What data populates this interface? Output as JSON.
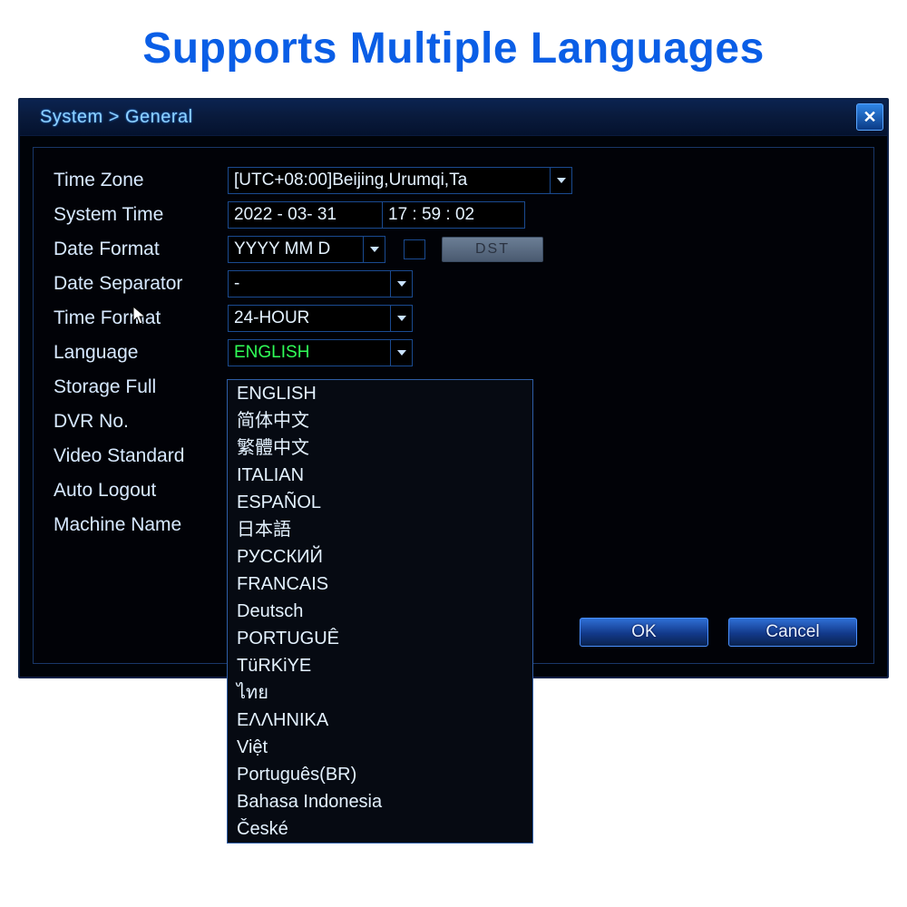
{
  "headline": "Supports Multiple Languages",
  "window": {
    "title": "System > General",
    "fields": {
      "time_zone": {
        "label": "Time Zone",
        "value": "[UTC+08:00]Beijing,Urumqi,Ta"
      },
      "system_time": {
        "label": "System Time",
        "date": "2022 - 03- 31",
        "time": "17 : 59 : 02"
      },
      "date_format": {
        "label": "Date Format",
        "value": "YYYY MM D"
      },
      "dst": {
        "checked": false,
        "button": "DST"
      },
      "date_separator": {
        "label": "Date Separator",
        "value": "-"
      },
      "time_format": {
        "label": "Time Format",
        "value": "24-HOUR"
      },
      "language": {
        "label": "Language",
        "value": "ENGLISH"
      },
      "storage_full": {
        "label": "Storage Full"
      },
      "dvr_no": {
        "label": "DVR No."
      },
      "video_standard": {
        "label": "Video Standard"
      },
      "auto_logout": {
        "label": "Auto Logout"
      },
      "machine_name": {
        "label": "Machine Name"
      }
    },
    "language_options": [
      "ENGLISH",
      "简体中文",
      "繁體中文",
      "ITALIAN",
      "ESPAÑOL",
      "日本語",
      "РУССКИЙ",
      "FRANCAIS",
      "Deutsch",
      "PORTUGUÊ",
      "TüRKiYE",
      "ไทย",
      "ΕΛΛΗΝΙΚΑ",
      "Việt",
      "Português(BR)",
      "Bahasa Indonesia",
      "České"
    ],
    "buttons": {
      "ok": "OK",
      "cancel": "Cancel"
    }
  },
  "colors": {
    "headline": "#0a5ee6",
    "window_bg": "#000308",
    "border": "#193768",
    "text": "#d7e9ff",
    "accent": "#2f6fd6",
    "lang_selected": "#30ff58"
  }
}
